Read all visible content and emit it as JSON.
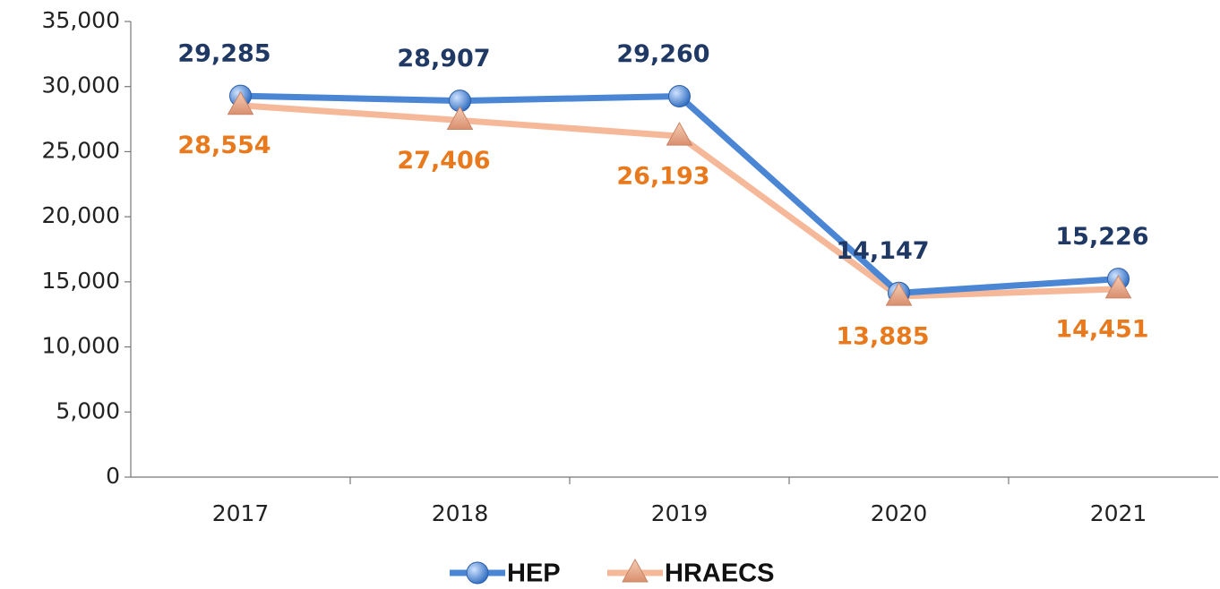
{
  "chart_data": {
    "type": "line",
    "categories": [
      "2017",
      "2018",
      "2019",
      "2020",
      "2021"
    ],
    "series": [
      {
        "name": "HEP",
        "color": "#4a86d4",
        "marker": "circle",
        "label_color": "#1f3864",
        "values": [
          29285,
          28907,
          29260,
          14147,
          15226
        ],
        "value_labels": [
          "29,285",
          "28,907",
          "29,260",
          "14,147",
          "15,226"
        ]
      },
      {
        "name": "HRAECS",
        "color": "#f5b99a",
        "marker": "triangle",
        "label_color": "#e8791c",
        "values": [
          28554,
          27406,
          26193,
          13885,
          14451
        ],
        "value_labels": [
          "28,554",
          "27,406",
          "26,193",
          "13,885",
          "14,451"
        ]
      }
    ],
    "ylim": [
      0,
      35000
    ],
    "yticks": [
      {
        "value": 0,
        "label": "0"
      },
      {
        "value": 5000,
        "label": "5,000"
      },
      {
        "value": 10000,
        "label": "10,000"
      },
      {
        "value": 15000,
        "label": "15,000"
      },
      {
        "value": 20000,
        "label": "20,000"
      },
      {
        "value": 25000,
        "label": "25,000"
      },
      {
        "value": 30000,
        "label": "30,000"
      },
      {
        "value": 35000,
        "label": "35,000"
      }
    ],
    "grid": false,
    "legend": "bottom"
  }
}
